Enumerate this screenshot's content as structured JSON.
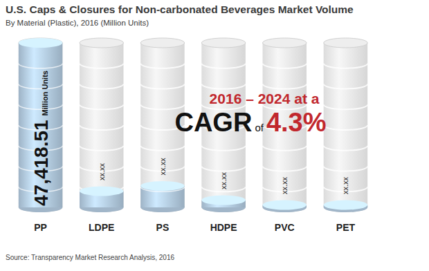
{
  "chart_data": {
    "type": "bar",
    "title": "U.S. Caps & Closures for Non-carbonated Beverages Market Volume",
    "subtitle": "By Material (Plastic), 2016 (Million Units)",
    "categories": [
      "PP",
      "LDPE",
      "PS",
      "HDPE",
      "PVC",
      "PET"
    ],
    "values": [
      47418.51,
      4700,
      6200,
      2100,
      700,
      700
    ],
    "value_labels": [
      "47,418.51",
      "xx.xx",
      "xx.xx",
      "xx.xx",
      "xx.xx",
      "xx.xx"
    ],
    "data_labels": true,
    "color": "#b3cbe0",
    "ylim": [
      0,
      47418.51
    ],
    "tick_labels": "x",
    "annotations": [
      "Million Units",
      "2016 – 2024 at a",
      "CAGR",
      "of",
      "4.3%"
    ],
    "source": "Source: Transparency Market Research Analysis, 2016"
  }
}
